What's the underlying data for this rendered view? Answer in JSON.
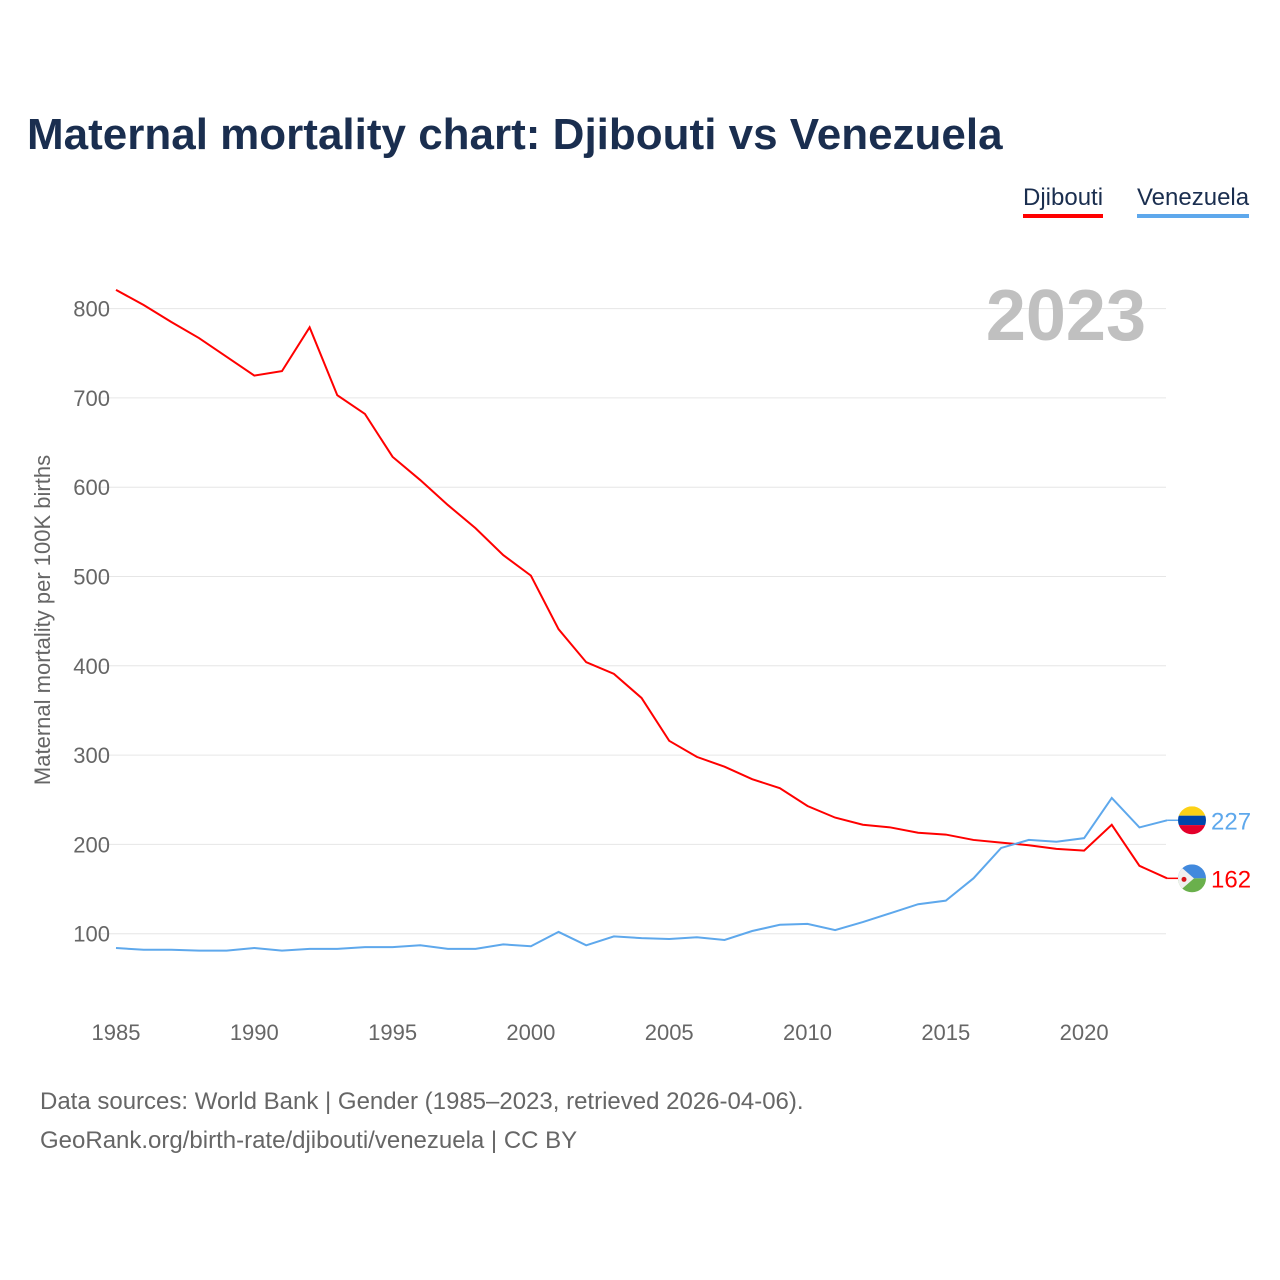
{
  "title": "Maternal mortality chart: Djibouti vs Venezuela",
  "footer": {
    "line1": "Data sources: World Bank | Gender (1985–2023, retrieved 2026-04-06).",
    "line2": "GeoRank.org/birth-rate/djibouti/venezuela | CC BY"
  },
  "chart_data": {
    "type": "line",
    "title": "Maternal mortality chart: Djibouti vs Venezuela",
    "year_label": "2023",
    "xlabel": "",
    "ylabel": "Maternal mortality per 100K births",
    "xlim": [
      1985,
      2023
    ],
    "ylim": [
      0,
      820
    ],
    "x_ticks": [
      1985,
      1990,
      1995,
      2000,
      2005,
      2010,
      2015,
      2020
    ],
    "y_ticks": [
      100,
      200,
      300,
      400,
      500,
      600,
      700,
      800
    ],
    "grid": true,
    "legend_position": "top-right",
    "x": [
      1985,
      1986,
      1987,
      1988,
      1989,
      1990,
      1991,
      1992,
      1993,
      1994,
      1995,
      1996,
      1997,
      1998,
      1999,
      2000,
      2001,
      2002,
      2003,
      2004,
      2005,
      2006,
      2007,
      2008,
      2009,
      2010,
      2011,
      2012,
      2013,
      2014,
      2015,
      2016,
      2017,
      2018,
      2019,
      2020,
      2021,
      2022,
      2023
    ],
    "series": [
      {
        "name": "Djibouti",
        "color": "#ff0000",
        "end_label": "162",
        "values": [
          821,
          804,
          785,
          767,
          746,
          725,
          730,
          779,
          703,
          682,
          634,
          608,
          580,
          554,
          524,
          501,
          441,
          404,
          391,
          364,
          316,
          298,
          287,
          273,
          263,
          243,
          230,
          222,
          219,
          213,
          211,
          205,
          202,
          199,
          195,
          193,
          222,
          176,
          162
        ]
      },
      {
        "name": "Venezuela",
        "color": "#5ea8ec",
        "end_label": "227",
        "values": [
          84,
          82,
          82,
          81,
          81,
          84,
          81,
          83,
          83,
          85,
          85,
          87,
          83,
          83,
          88,
          86,
          102,
          87,
          97,
          95,
          94,
          96,
          93,
          103,
          110,
          111,
          104,
          113,
          123,
          133,
          137,
          162,
          196,
          205,
          203,
          207,
          252,
          219,
          227
        ]
      }
    ]
  }
}
